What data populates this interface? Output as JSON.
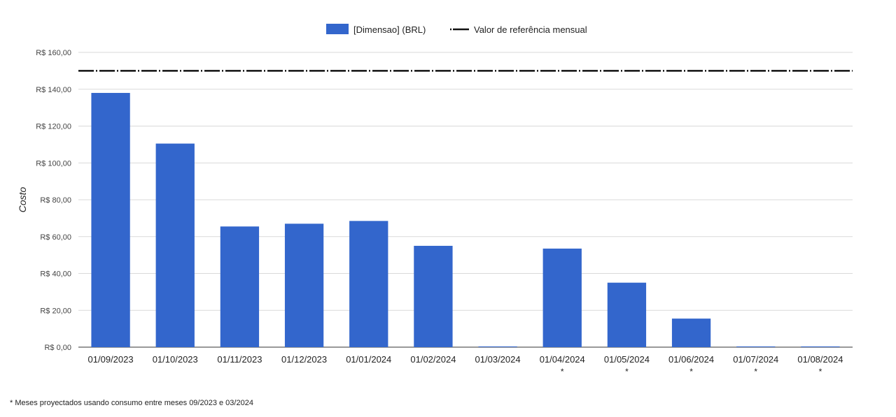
{
  "chart_data": {
    "type": "bar",
    "title": "",
    "xlabel": "",
    "ylabel": "Costo",
    "categories": [
      "01/09/2023",
      "01/10/2023",
      "01/11/2023",
      "01/12/2023",
      "01/01/2024",
      "01/02/2024",
      "01/03/2024",
      "01/04/2024",
      "01/05/2024",
      "01/06/2024",
      "01/07/2024",
      "01/08/2024"
    ],
    "category_markers": [
      "",
      "",
      "",
      "",
      "",
      "",
      "",
      "*",
      "*",
      "*",
      "*",
      "*"
    ],
    "series": [
      {
        "name": "[Dimensao] (BRL)",
        "color": "#3366cc",
        "values": [
          138,
          110.5,
          65.5,
          67,
          68.5,
          55,
          0,
          53.5,
          35,
          15.5,
          0,
          0
        ]
      }
    ],
    "reference_line": {
      "name": "Valor de referência mensual",
      "value": 150,
      "color": "#111111",
      "style": "dash-dot"
    },
    "ylim": [
      0,
      160
    ],
    "yticks": [
      0,
      20,
      40,
      60,
      80,
      100,
      120,
      140,
      160
    ],
    "ytick_labels": [
      "R$ 0,00",
      "R$ 20,00",
      "R$ 40,00",
      "R$ 60,00",
      "R$ 80,00",
      "R$ 100,00",
      "R$ 120,00",
      "R$ 140,00",
      "R$ 160,00"
    ],
    "grid": true,
    "legend_position": "top-center"
  },
  "footnote": "* Meses proyectados usando consumo entre meses 09/2023 e 03/2024"
}
